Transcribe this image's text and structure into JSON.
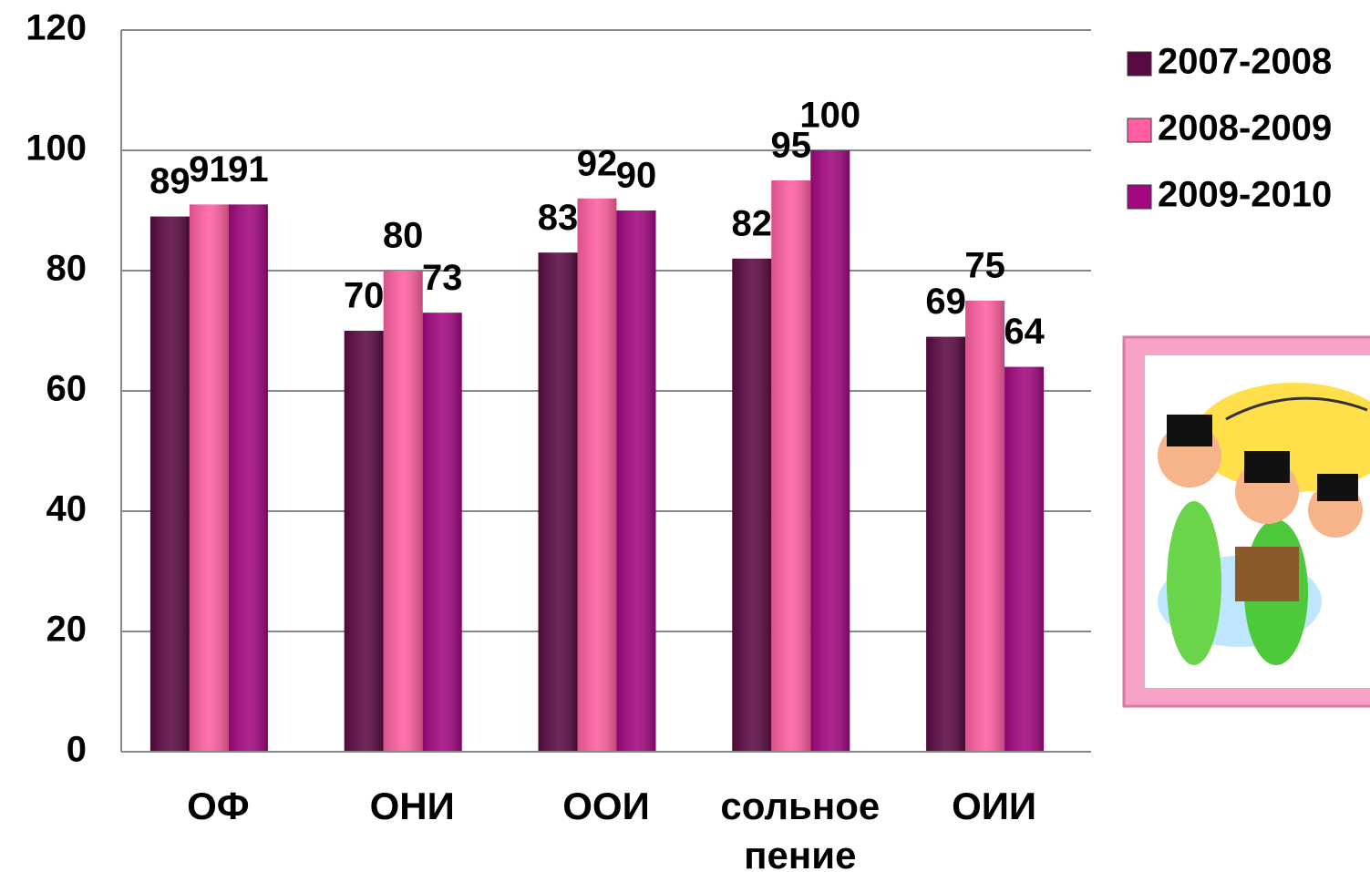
{
  "chart_data": {
    "type": "bar",
    "categories": [
      "ОФ",
      "ОНИ",
      "ООИ",
      "сольное пение",
      "ОИИ"
    ],
    "series": [
      {
        "name": "2007-2008",
        "color": "#5a0a42",
        "values": [
          89,
          70,
          83,
          82,
          69
        ]
      },
      {
        "name": "2008-2009",
        "color": "#ff5fa2",
        "values": [
          91,
          80,
          92,
          95,
          75
        ]
      },
      {
        "name": "2009-2010",
        "color": "#a2087f",
        "values": [
          91,
          73,
          90,
          100,
          64
        ]
      }
    ],
    "ylim": [
      0,
      120
    ],
    "yticks": [
      0,
      20,
      40,
      60,
      80,
      100,
      120
    ],
    "grid": true,
    "legend": "right"
  }
}
